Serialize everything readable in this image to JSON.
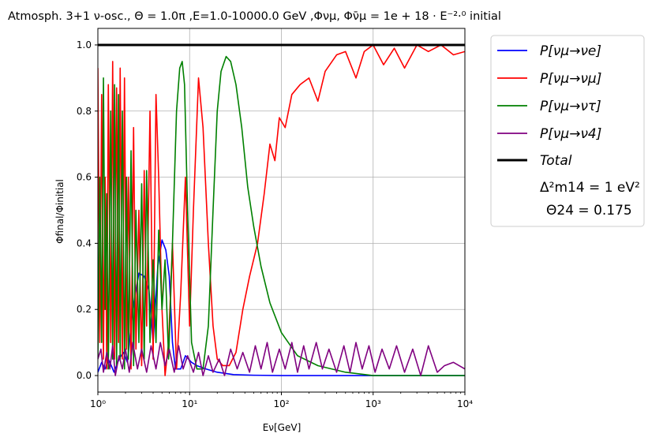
{
  "chart_data": {
    "type": "line",
    "title": "Atmosph. 3+1 ν-osc., Θ = 1.0π ,E=1.0-10000.0 GeV  ,Φνμ, Φν̄μ = 1e + 18 · E⁻²·⁰ initial",
    "xlabel": "Eν[GeV]",
    "ylabel": "Φfinal/Φinitial",
    "xscale": "log",
    "xlim": [
      1,
      10000
    ],
    "ylim": [
      -0.05,
      1.05
    ],
    "grid": true,
    "x_ticks": [
      1,
      10,
      100,
      1000,
      10000
    ],
    "x_tick_labels": [
      "10⁰",
      "10¹",
      "10²",
      "10³",
      "10⁴"
    ],
    "y_ticks": [
      0.0,
      0.2,
      0.4,
      0.6,
      0.8,
      1.0
    ],
    "y_tick_labels": [
      "0.0",
      "0.2",
      "0.4",
      "0.6",
      "0.8",
      "1.0"
    ],
    "legend_position": "outside-right",
    "series": [
      {
        "name": "P[νμ→νe]",
        "color": "#0000ff",
        "x": [
          1.0,
          1.1,
          1.2,
          1.3,
          1.4,
          1.5,
          1.7,
          1.9,
          2.1,
          2.4,
          2.8,
          3.2,
          3.6,
          4.0,
          4.5,
          5.0,
          5.5,
          6.0,
          6.5,
          7.0,
          8.0,
          9.0,
          10.5,
          12,
          15,
          20,
          30,
          50,
          100,
          1000,
          10000
        ],
        "y": [
          0.01,
          0.04,
          0.02,
          0.05,
          0.03,
          0.01,
          0.05,
          0.07,
          0.04,
          0.2,
          0.31,
          0.3,
          0.26,
          0.1,
          0.33,
          0.41,
          0.38,
          0.3,
          0.1,
          0.02,
          0.02,
          0.06,
          0.04,
          0.03,
          0.02,
          0.01,
          0.003,
          0.001,
          0.0,
          0.0,
          0.0
        ]
      },
      {
        "name": "P[νμ→νμ]",
        "color": "#ff0000",
        "x": [
          1.0,
          1.05,
          1.1,
          1.15,
          1.2,
          1.25,
          1.3,
          1.38,
          1.45,
          1.52,
          1.6,
          1.68,
          1.75,
          1.85,
          1.95,
          2.05,
          2.15,
          2.3,
          2.45,
          2.6,
          2.8,
          3.0,
          3.2,
          3.4,
          3.7,
          4.0,
          4.3,
          4.6,
          5.0,
          5.4,
          5.9,
          6.5,
          7.2,
          8.0,
          9.0,
          10.0,
          11.0,
          12.5,
          14.0,
          16.0,
          18.0,
          20.0,
          23.0,
          27.0,
          32.0,
          38.0,
          45.0,
          55.0,
          65.0,
          75.0,
          85.0,
          95.0,
          110.0,
          130.0,
          160.0,
          200.0,
          250.0,
          300.0,
          400.0,
          500.0,
          650.0,
          800.0,
          1000.0,
          1300.0,
          1700.0,
          2200.0,
          3000.0,
          4000.0,
          5500.0,
          7500.0,
          10000.0
        ],
        "y": [
          0.93,
          0.1,
          0.85,
          0.05,
          0.6,
          0.02,
          0.88,
          0.1,
          0.95,
          0.05,
          0.87,
          0.1,
          0.93,
          0.05,
          0.9,
          0.08,
          0.6,
          0.02,
          0.75,
          0.08,
          0.5,
          0.03,
          0.62,
          0.15,
          0.8,
          0.05,
          0.85,
          0.6,
          0.2,
          0.0,
          0.1,
          0.4,
          0.02,
          0.25,
          0.6,
          0.15,
          0.5,
          0.9,
          0.75,
          0.4,
          0.15,
          0.05,
          0.03,
          0.03,
          0.07,
          0.2,
          0.3,
          0.4,
          0.55,
          0.7,
          0.65,
          0.78,
          0.75,
          0.85,
          0.88,
          0.9,
          0.83,
          0.92,
          0.97,
          0.98,
          0.9,
          0.98,
          1.0,
          0.94,
          0.99,
          0.93,
          1.0,
          0.98,
          1.0,
          0.97,
          0.98
        ]
      },
      {
        "name": "P[νμ→ντ]",
        "color": "#008000",
        "x": [
          1.0,
          1.05,
          1.1,
          1.15,
          1.2,
          1.25,
          1.3,
          1.38,
          1.45,
          1.52,
          1.6,
          1.68,
          1.75,
          1.85,
          1.95,
          2.05,
          2.15,
          2.3,
          2.45,
          2.6,
          2.8,
          3.0,
          3.2,
          3.4,
          3.7,
          4.0,
          4.3,
          4.6,
          5.0,
          5.4,
          5.9,
          6.5,
          7.2,
          7.8,
          8.3,
          8.8,
          9.5,
          10.5,
          12.0,
          14.0,
          16.0,
          18.0,
          20.0,
          22.0,
          25.0,
          28.0,
          32.0,
          37.0,
          43.0,
          50.0,
          60.0,
          75.0,
          100.0,
          150.0,
          250.0,
          500.0,
          1000.0,
          10000.0
        ],
        "y": [
          0.05,
          0.6,
          0.1,
          0.9,
          0.2,
          0.55,
          0.02,
          0.8,
          0.05,
          0.88,
          0.03,
          0.85,
          0.05,
          0.8,
          0.02,
          0.6,
          0.05,
          0.68,
          0.03,
          0.5,
          0.1,
          0.58,
          0.05,
          0.62,
          0.1,
          0.35,
          0.1,
          0.44,
          0.2,
          0.35,
          0.05,
          0.4,
          0.8,
          0.93,
          0.95,
          0.88,
          0.5,
          0.1,
          0.02,
          0.02,
          0.15,
          0.5,
          0.8,
          0.92,
          0.965,
          0.95,
          0.88,
          0.75,
          0.57,
          0.45,
          0.33,
          0.22,
          0.13,
          0.06,
          0.03,
          0.01,
          0.0,
          0.0
        ]
      },
      {
        "name": "P[νμ→ν4]",
        "color": "#800080",
        "x": [
          1.0,
          1.08,
          1.15,
          1.25,
          1.35,
          1.45,
          1.55,
          1.7,
          1.85,
          2.0,
          2.2,
          2.4,
          2.7,
          3.0,
          3.4,
          3.8,
          4.3,
          4.8,
          5.4,
          6.0,
          6.8,
          7.6,
          8.5,
          9.5,
          11,
          12.5,
          14,
          16,
          18,
          21,
          24,
          28,
          33,
          38,
          45,
          52,
          60,
          70,
          80,
          95,
          110,
          130,
          150,
          175,
          200,
          240,
          280,
          330,
          400,
          480,
          560,
          650,
          760,
          900,
          1050,
          1250,
          1500,
          1800,
          2200,
          2700,
          3300,
          4000,
          5000,
          6000,
          7500,
          10000
        ],
        "y": [
          0.05,
          0.08,
          0.01,
          0.07,
          0.02,
          0.09,
          0.0,
          0.06,
          0.02,
          0.08,
          0.01,
          0.1,
          0.02,
          0.08,
          0.01,
          0.09,
          0.02,
          0.1,
          0.03,
          0.08,
          0.01,
          0.09,
          0.02,
          0.06,
          0.01,
          0.07,
          0.0,
          0.06,
          0.01,
          0.05,
          0.0,
          0.08,
          0.02,
          0.07,
          0.01,
          0.09,
          0.02,
          0.1,
          0.01,
          0.08,
          0.02,
          0.1,
          0.01,
          0.09,
          0.02,
          0.1,
          0.02,
          0.08,
          0.01,
          0.09,
          0.01,
          0.1,
          0.02,
          0.09,
          0.01,
          0.08,
          0.02,
          0.09,
          0.01,
          0.08,
          0.0,
          0.09,
          0.01,
          0.03,
          0.04,
          0.02
        ]
      },
      {
        "name": "Total",
        "color": "#000000",
        "x": [
          1,
          10000
        ],
        "y": [
          1.0,
          1.0
        ]
      }
    ],
    "legend_note": {
      "line1": "Δ²m14 = 1 eV²",
      "line2": "Θ24 = 0.175"
    }
  }
}
